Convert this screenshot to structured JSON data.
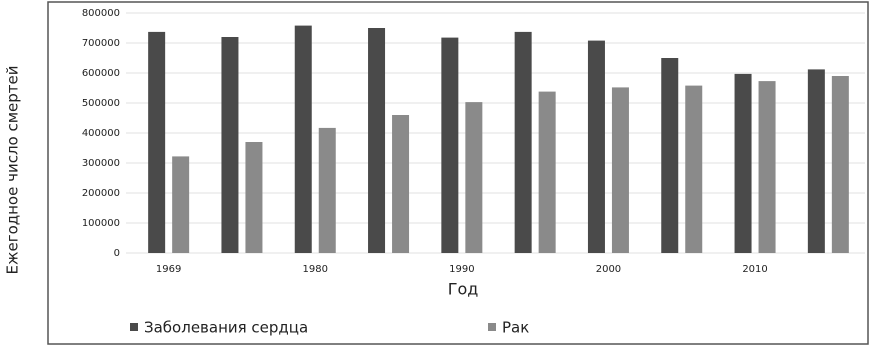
{
  "chart_data": {
    "type": "bar",
    "y_label": "Ежегодное число смертей",
    "x_label": "Год",
    "categories": [
      "1969",
      null,
      "1980",
      null,
      "1990",
      null,
      "2000",
      null,
      "2010",
      null
    ],
    "series": [
      {
        "name": "Заболевания сердца",
        "color": "#4a4a4a",
        "values": [
          737000,
          720000,
          758000,
          750000,
          718000,
          737000,
          708000,
          650000,
          597000,
          612000
        ]
      },
      {
        "name": "Рак",
        "color": "#8a8a8a",
        "values": [
          322000,
          370000,
          417000,
          460000,
          503000,
          538000,
          552000,
          558000,
          573000,
          590000
        ]
      }
    ],
    "ylim": [
      0,
      800000
    ],
    "yticks": [
      0,
      100000,
      200000,
      300000,
      400000,
      500000,
      600000,
      700000,
      800000
    ],
    "grid": true
  }
}
